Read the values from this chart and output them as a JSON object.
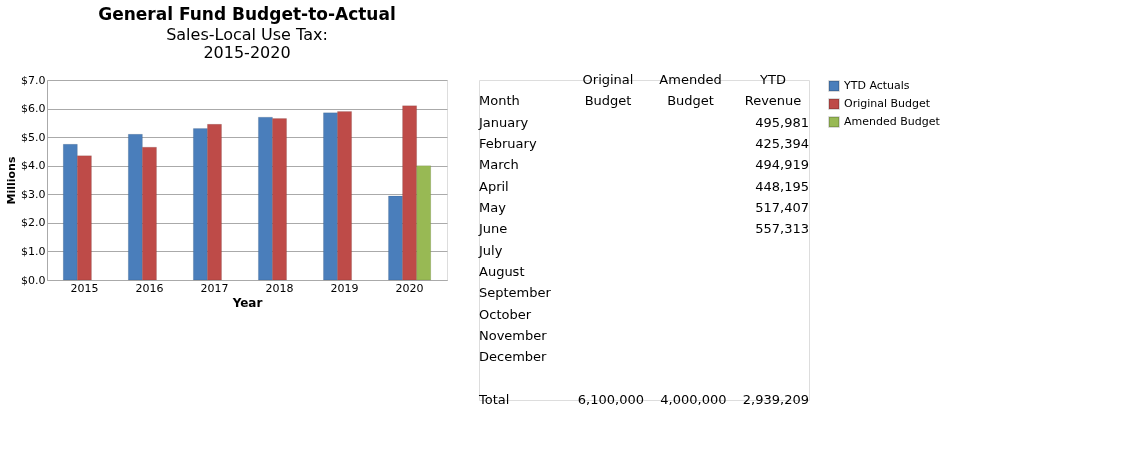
{
  "chart_data": [
    {
      "type": "bar",
      "title": "General Fund Budget-to-Actual",
      "subtitle": "Sales-Local Use Tax: 2015-2020",
      "xlabel": "Year",
      "ylabel": "Millions",
      "categories": [
        "2015",
        "2016",
        "2017",
        "2018",
        "2019",
        "2020"
      ],
      "series": [
        {
          "name": "YTD Actuals",
          "color": "#4a7ebb",
          "values": [
            4.75,
            5.1,
            5.3,
            5.7,
            5.85,
            2.94
          ]
        },
        {
          "name": "Original Budget",
          "color": "#be4b48",
          "values": [
            4.35,
            4.65,
            5.45,
            5.65,
            5.9,
            6.1
          ]
        },
        {
          "name": "Amended Budget",
          "color": "#98b954",
          "values": [
            null,
            null,
            null,
            null,
            null,
            4.0
          ]
        }
      ],
      "ylim": [
        0,
        7
      ],
      "yticks": [
        {
          "value": 0,
          "label": "$0.0"
        },
        {
          "value": 1,
          "label": "$1.0"
        },
        {
          "value": 2,
          "label": "$2.0"
        },
        {
          "value": 3,
          "label": "$3.0"
        },
        {
          "value": 4,
          "label": "$4.0"
        },
        {
          "value": 5,
          "label": "$5.0"
        },
        {
          "value": 6,
          "label": "$6.0"
        },
        {
          "value": 7,
          "label": "$7.0"
        }
      ],
      "grid": "y",
      "legend": "right"
    },
    {
      "type": "other",
      "xlabel": "Month",
      "categories": [
        "January",
        "February",
        "March",
        "April",
        "May",
        "June",
        "July",
        "August",
        "September",
        "October",
        "November",
        "December",
        "Total"
      ],
      "series": [
        {
          "name": "Original Budget",
          "values": [
            null,
            null,
            null,
            null,
            null,
            null,
            null,
            null,
            null,
            null,
            null,
            null,
            6100000
          ],
          "value_labels": [
            null,
            null,
            null,
            null,
            null,
            null,
            null,
            null,
            null,
            null,
            null,
            null,
            "6,100,000"
          ]
        },
        {
          "name": "Amended Budget",
          "values": [
            null,
            null,
            null,
            null,
            null,
            null,
            null,
            null,
            null,
            null,
            null,
            null,
            4000000
          ],
          "value_labels": [
            null,
            null,
            null,
            null,
            null,
            null,
            null,
            null,
            null,
            null,
            null,
            null,
            "4,000,000"
          ]
        },
        {
          "name": "YTD Revenue",
          "values": [
            495981,
            425394,
            494919,
            448195,
            517407,
            557313,
            null,
            null,
            null,
            null,
            null,
            null,
            2939209
          ],
          "value_labels": [
            "495,981",
            "425,394",
            "494,919",
            "448,195",
            "517,407",
            "557,313",
            null,
            null,
            null,
            null,
            null,
            null,
            "2,939,209"
          ]
        }
      ]
    }
  ]
}
